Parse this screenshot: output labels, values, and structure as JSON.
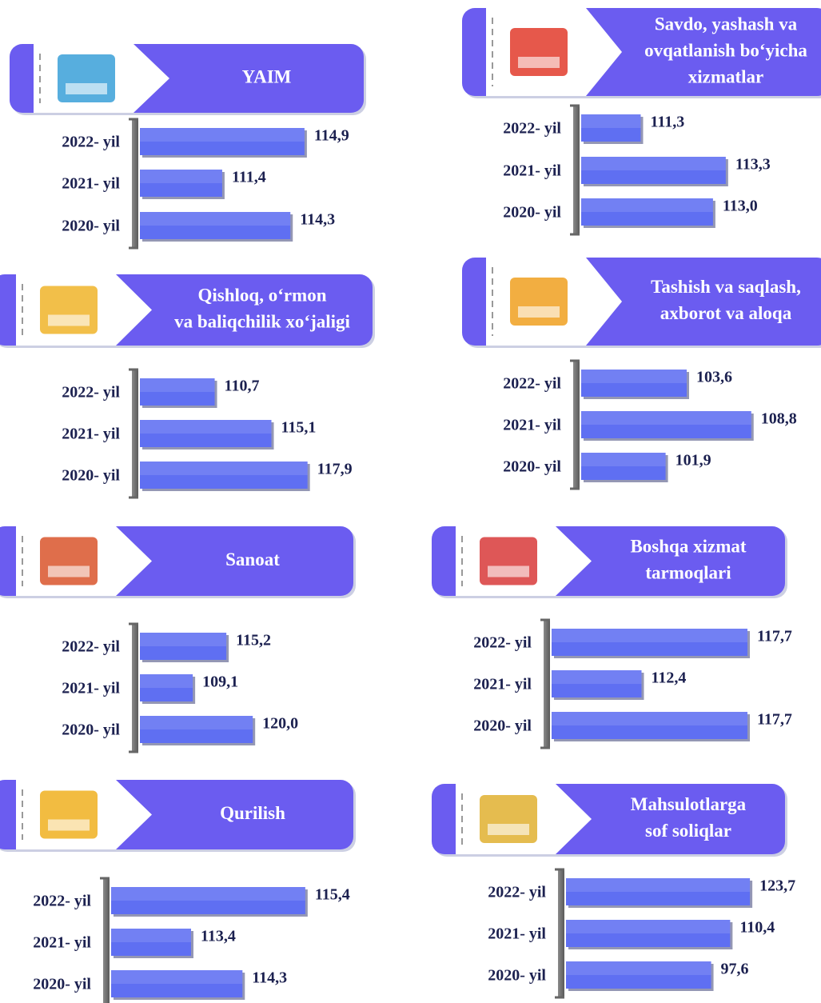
{
  "chart_data": [
    {
      "type": "bar",
      "title": [
        "YAIM"
      ],
      "categories": [
        "2022- yil",
        "2021- yil",
        "2020- yil"
      ],
      "values": [
        114.9,
        111.4,
        114.3
      ],
      "value_labels": [
        "114,9",
        "111,4",
        "114,3"
      ],
      "xlim": [
        107.9,
        116.4
      ],
      "color": "#5f6ff2"
    },
    {
      "type": "bar",
      "title": [
        "Savdo, yashash va",
        "ovqatlanish bo‘yicha",
        "xizmatlar"
      ],
      "categories": [
        "2022- yil",
        "2021- yil",
        "2020- yil"
      ],
      "values": [
        111.3,
        113.3,
        113.0
      ],
      "value_labels": [
        "111,3",
        "113,3",
        "113,0"
      ],
      "xlim": [
        109.9,
        114.6
      ],
      "color": "#5f6ff2"
    },
    {
      "type": "bar",
      "title": [
        "Qishloq, o‘rmon",
        "va baliqchilik xo‘jaligi"
      ],
      "categories": [
        "2022- yil",
        "2021- yil",
        "2020- yil"
      ],
      "values": [
        110.7,
        115.1,
        117.9
      ],
      "value_labels": [
        "110,7",
        "115,1",
        "117,9"
      ],
      "xlim": [
        104.9,
        120.4
      ],
      "color": "#5f6ff2"
    },
    {
      "type": "bar",
      "title": [
        "Tashish va saqlash,",
        "axborot va aloqa"
      ],
      "categories": [
        "2022- yil",
        "2021- yil",
        "2020- yil"
      ],
      "values": [
        103.6,
        108.8,
        101.9
      ],
      "value_labels": [
        "103,6",
        "108,8",
        "101,9"
      ],
      "xlim": [
        95.1,
        111.2
      ],
      "color": "#5f6ff2"
    },
    {
      "type": "bar",
      "title": [
        "Sanoat"
      ],
      "categories": [
        "2022- yil",
        "2021- yil",
        "2020- yil"
      ],
      "values": [
        115.2,
        109.1,
        120.0
      ],
      "value_labels": [
        "115,2",
        "109,1",
        "120,0"
      ],
      "xlim": [
        99.5,
        135.8
      ],
      "color": "#5f6ff2"
    },
    {
      "type": "bar",
      "title": [
        "Boshqa xizmat",
        "tarmoqlari"
      ],
      "categories": [
        "2022- yil",
        "2021- yil",
        "2020- yil"
      ],
      "values": [
        117.7,
        112.4,
        117.7
      ],
      "value_labels": [
        "117,7",
        "112,4",
        "117,7"
      ],
      "xlim": [
        107.9,
        117.9
      ],
      "color": "#5f6ff2"
    },
    {
      "type": "bar",
      "title": [
        "Qurilish"
      ],
      "categories": [
        "2022- yil",
        "2021- yil",
        "2020- yil"
      ],
      "values": [
        115.4,
        113.4,
        114.3
      ],
      "value_labels": [
        "115,4",
        "113,4",
        "114,3"
      ],
      "xlim": [
        112.0,
        115.5
      ],
      "color": "#5f6ff2"
    },
    {
      "type": "bar",
      "title": [
        "Mahsulotlarga",
        "sof soliqlar"
      ],
      "categories": [
        "2022- yil",
        "2021- yil",
        "2020- yil"
      ],
      "values": [
        123.7,
        110.4,
        97.6
      ],
      "value_labels": [
        "123,7",
        "110,4",
        "97,6"
      ],
      "xlim": [
        0,
        134.4
      ],
      "color": "#5f6ff2"
    }
  ]
}
